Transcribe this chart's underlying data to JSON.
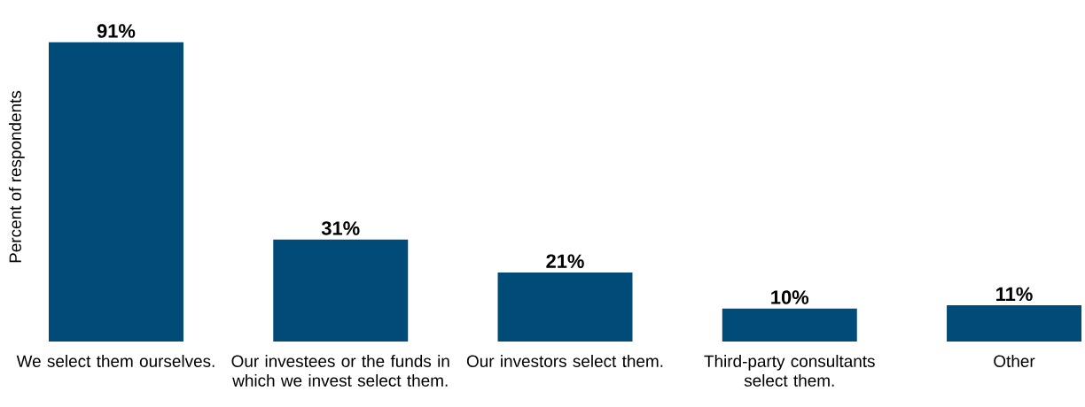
{
  "chart_data": {
    "type": "bar",
    "ylabel": "Percent of respondents",
    "categories": [
      "We select them ourselves.",
      "Our investees or the funds in which we invest select them.",
      "Our investors select them.",
      "Third-party consultants select them.",
      "Other"
    ],
    "values": [
      91,
      31,
      21,
      10,
      11
    ],
    "value_labels": [
      "91%",
      "31%",
      "21%",
      "10%",
      "11%"
    ],
    "color": "#004b78"
  }
}
